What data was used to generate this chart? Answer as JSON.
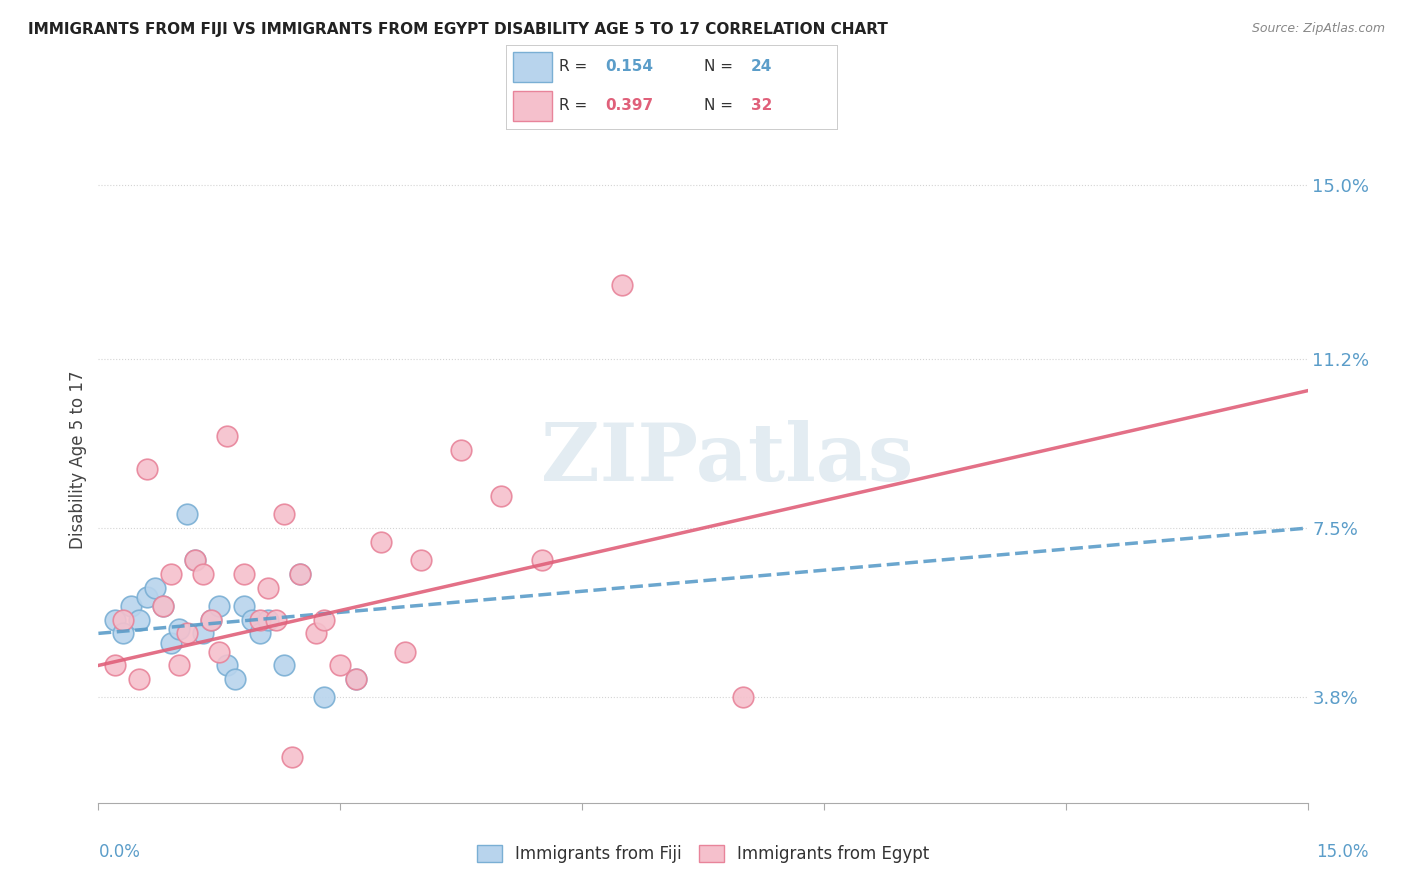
{
  "title": "IMMIGRANTS FROM FIJI VS IMMIGRANTS FROM EGYPT DISABILITY AGE 5 TO 17 CORRELATION CHART",
  "source": "Source: ZipAtlas.com",
  "ylabel": "Disability Age 5 to 17",
  "ytick_labels": [
    "3.8%",
    "7.5%",
    "11.2%",
    "15.0%"
  ],
  "ytick_values": [
    3.8,
    7.5,
    11.2,
    15.0
  ],
  "xlim": [
    0.0,
    15.0
  ],
  "ylim": [
    1.5,
    16.5
  ],
  "fiji_color": "#b8d4ed",
  "fiji_color_edge": "#7aafd4",
  "fiji_line_color": "#5b9dc9",
  "egypt_color": "#f5c0cc",
  "egypt_color_edge": "#e8849a",
  "egypt_line_color": "#e0607a",
  "fiji_R": 0.154,
  "fiji_N": 24,
  "egypt_R": 0.397,
  "egypt_N": 32,
  "fiji_x": [
    0.2,
    0.3,
    0.4,
    0.5,
    0.6,
    0.7,
    0.8,
    0.9,
    1.0,
    1.1,
    1.2,
    1.3,
    1.4,
    1.5,
    1.6,
    1.7,
    1.8,
    1.9,
    2.0,
    2.1,
    2.3,
    2.5,
    2.8,
    3.2
  ],
  "fiji_y": [
    5.5,
    5.2,
    5.8,
    5.5,
    6.0,
    6.2,
    5.8,
    5.0,
    5.3,
    7.8,
    6.8,
    5.2,
    5.5,
    5.8,
    4.5,
    4.2,
    5.8,
    5.5,
    5.2,
    5.5,
    4.5,
    6.5,
    3.8,
    4.2
  ],
  "egypt_x": [
    0.2,
    0.3,
    0.5,
    0.6,
    0.8,
    0.9,
    1.0,
    1.1,
    1.2,
    1.3,
    1.4,
    1.5,
    1.6,
    1.8,
    2.0,
    2.1,
    2.2,
    2.3,
    2.5,
    2.7,
    2.8,
    3.0,
    3.2,
    3.5,
    3.8,
    4.0,
    4.5,
    5.0,
    5.5,
    6.5,
    8.0,
    2.4
  ],
  "egypt_y": [
    4.5,
    5.5,
    4.2,
    8.8,
    5.8,
    6.5,
    4.5,
    5.2,
    6.8,
    6.5,
    5.5,
    4.8,
    9.5,
    6.5,
    5.5,
    6.2,
    5.5,
    7.8,
    6.5,
    5.2,
    5.5,
    4.5,
    4.2,
    7.2,
    4.8,
    6.8,
    9.2,
    8.2,
    6.8,
    12.8,
    3.8,
    2.5
  ],
  "watermark": "ZIPatlas",
  "background_color": "#ffffff",
  "grid_color": "#d0d0d0"
}
